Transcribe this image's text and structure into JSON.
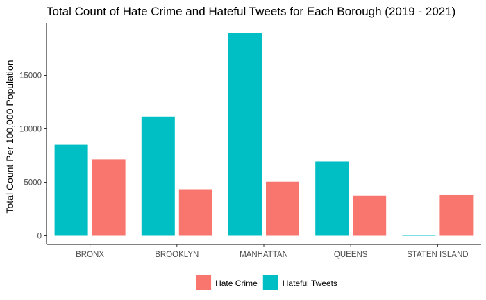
{
  "chart_data": {
    "type": "bar",
    "title": "Total Count of Hate Crime and Hateful Tweets for Each Borough (2019 - 2021)",
    "xlabel": "",
    "ylabel": "Total Count Per 100,000 Population",
    "categories": [
      "BRONX",
      "BROOKLYN",
      "MANHATTAN",
      "QUEENS",
      "STATEN ISLAND"
    ],
    "series": [
      {
        "name": "Hateful Tweets",
        "color": "#00BFC4",
        "values": [
          8500,
          11150,
          18950,
          6950,
          60
        ]
      },
      {
        "name": "Hate Crime",
        "color": "#F8766D",
        "values": [
          7150,
          4350,
          5050,
          3750,
          3800
        ]
      }
    ],
    "yticks": [
      0,
      5000,
      10000,
      15000
    ],
    "ytick_labels": [
      "0",
      "5000",
      "10000",
      "15000"
    ],
    "ylim": [
      0,
      19000
    ],
    "grid": false,
    "legend": {
      "position": "bottom",
      "entries": [
        {
          "label": "Hate Crime",
          "color": "#F8766D"
        },
        {
          "label": "Hateful Tweets",
          "color": "#00BFC4"
        }
      ]
    }
  }
}
